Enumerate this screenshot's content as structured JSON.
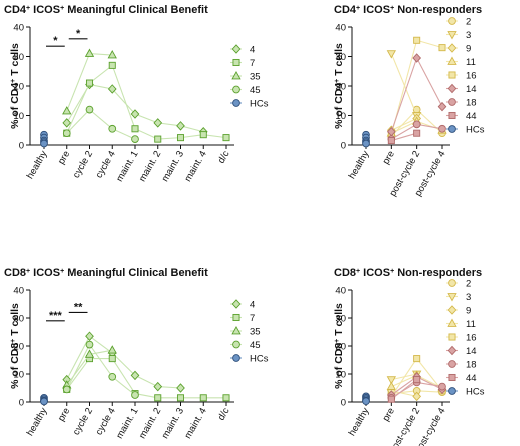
{
  "chart_data": [
    {
      "id": "p1",
      "type": "line",
      "title_parts": [
        "CD4",
        "+",
        " ICOS",
        "+",
        " Meaningful Clinical Benefit"
      ],
      "ylabel_parts": [
        "% of CD4",
        "+",
        " T cells"
      ],
      "ylim": [
        0,
        40
      ],
      "yticks": [
        0,
        10,
        20,
        30,
        40
      ],
      "categories": [
        "healthy",
        "pre",
        "cycle 2",
        "cycle 4",
        "maint. 1",
        "maint. 2",
        "maint. 3",
        "maint. 4",
        "d/c"
      ],
      "legend_position": "right",
      "series": [
        {
          "name": "4",
          "marker": "diamond",
          "color": "#5aa02c",
          "fill": "#c8e4b0",
          "x": [
            1,
            2,
            3,
            4,
            5,
            6,
            7
          ],
          "y": [
            7.5,
            20.5,
            19,
            10.5,
            7.5,
            6.5,
            4.5
          ]
        },
        {
          "name": "7",
          "marker": "square",
          "color": "#5aa02c",
          "fill": "#c8e4b0",
          "x": [
            1,
            2,
            3,
            4,
            5,
            6,
            7,
            8
          ],
          "y": [
            4,
            21,
            27,
            5.5,
            2,
            2.5,
            3.5,
            2.5
          ]
        },
        {
          "name": "35",
          "marker": "triangle",
          "color": "#5aa02c",
          "fill": "#c8e4b0",
          "x": [
            1,
            2,
            3
          ],
          "y": [
            11.5,
            31,
            30.5
          ]
        },
        {
          "name": "45",
          "marker": "circle",
          "color": "#5aa02c",
          "fill": "#c8e4b0",
          "x": [
            1,
            2,
            3,
            4
          ],
          "y": [
            4,
            12,
            5.5,
            2
          ]
        },
        {
          "name": "HCs",
          "marker": "circle",
          "color": "#2e4f7a",
          "fill": "#6b93c4",
          "x": [
            0,
            0,
            0,
            0,
            0
          ],
          "y": [
            3.5,
            2.5,
            1.5,
            1,
            0.5
          ]
        }
      ],
      "significance": [
        {
          "x1": 0,
          "x2": 1,
          "y": 33.5,
          "label": "*"
        },
        {
          "x1": 1,
          "x2": 2,
          "y": 36,
          "label": "*"
        }
      ]
    },
    {
      "id": "p2",
      "type": "line",
      "title_parts": [
        "CD4",
        "+",
        " ICOS",
        "+",
        " Non-responders"
      ],
      "ylabel_parts": [
        "% of CD4",
        "+",
        " T cells"
      ],
      "ylim": [
        0,
        40
      ],
      "yticks": [
        0,
        10,
        20,
        30,
        40
      ],
      "categories": [
        "healthy",
        "pre",
        "post-cycle 2",
        "post-cycle 4"
      ],
      "legend_position": "right",
      "series": [
        {
          "name": "2",
          "marker": "circle",
          "color": "#d4b84a",
          "fill": "#f2e6a8",
          "x": [
            1,
            2,
            3
          ],
          "y": [
            3,
            12,
            4
          ]
        },
        {
          "name": "3",
          "marker": "triangle-down",
          "color": "#d4b84a",
          "fill": "#f2e6a8",
          "x": [
            1,
            2
          ],
          "y": [
            31,
            10
          ]
        },
        {
          "name": "9",
          "marker": "diamond",
          "color": "#d4b84a",
          "fill": "#f2e6a8",
          "x": [
            1,
            2
          ],
          "y": [
            5,
            9
          ]
        },
        {
          "name": "11",
          "marker": "triangle",
          "color": "#d4b84a",
          "fill": "#f2e6a8",
          "x": [
            1,
            2,
            3
          ],
          "y": [
            4,
            8,
            5
          ]
        },
        {
          "name": "16",
          "marker": "square",
          "color": "#d4b84a",
          "fill": "#f2e6a8",
          "x": [
            1,
            2,
            3
          ],
          "y": [
            3.5,
            35.5,
            33
          ]
        },
        {
          "name": "14",
          "marker": "diamond",
          "color": "#b06a6a",
          "fill": "#d9a3a3",
          "x": [
            1,
            2,
            3
          ],
          "y": [
            4.5,
            29.5,
            13
          ]
        },
        {
          "name": "18",
          "marker": "circle",
          "color": "#b06a6a",
          "fill": "#d9a3a3",
          "x": [
            1,
            2,
            3
          ],
          "y": [
            2,
            7,
            5.5
          ]
        },
        {
          "name": "44",
          "marker": "square",
          "color": "#b06a6a",
          "fill": "#d9a3a3",
          "x": [
            1,
            2
          ],
          "y": [
            1.5,
            4
          ]
        },
        {
          "name": "HCs",
          "marker": "circle",
          "color": "#2e4f7a",
          "fill": "#6b93c4",
          "x": [
            0,
            0,
            0,
            0,
            0
          ],
          "y": [
            3.5,
            2.5,
            1.5,
            1,
            0.5
          ]
        }
      ],
      "significance": []
    },
    {
      "id": "p3",
      "type": "line",
      "title_parts": [
        "CD8",
        "+",
        " ICOS",
        "+",
        " Meaningful Clinical Benefit"
      ],
      "ylabel_parts": [
        "% of CD8",
        "+",
        " T cells"
      ],
      "ylim": [
        0,
        40
      ],
      "yticks": [
        0,
        10,
        20,
        30,
        40
      ],
      "categories": [
        "healthy",
        "pre",
        "cycle 2",
        "cycle 4",
        "maint. 1",
        "maint. 2",
        "maint. 3",
        "maint. 4",
        "d/c"
      ],
      "legend_position": "right",
      "series": [
        {
          "name": "4",
          "marker": "diamond",
          "color": "#5aa02c",
          "fill": "#c8e4b0",
          "x": [
            1,
            2,
            3,
            4,
            5,
            6
          ],
          "y": [
            8,
            23.5,
            17.5,
            9.5,
            5.5,
            5
          ]
        },
        {
          "name": "7",
          "marker": "square",
          "color": "#5aa02c",
          "fill": "#c8e4b0",
          "x": [
            1,
            2,
            3,
            4,
            5,
            6,
            7,
            8
          ],
          "y": [
            4.5,
            15.5,
            15.5,
            3,
            1.5,
            1.5,
            1.5,
            1.5
          ]
        },
        {
          "name": "35",
          "marker": "triangle",
          "color": "#5aa02c",
          "fill": "#c8e4b0",
          "x": [
            1,
            2,
            3
          ],
          "y": [
            6,
            17,
            18.5
          ]
        },
        {
          "name": "45",
          "marker": "circle",
          "color": "#5aa02c",
          "fill": "#c8e4b0",
          "x": [
            1,
            2,
            3,
            4
          ],
          "y": [
            4.5,
            20.5,
            9,
            2.5
          ]
        },
        {
          "name": "HCs",
          "marker": "circle",
          "color": "#2e4f7a",
          "fill": "#6b93c4",
          "x": [
            0,
            0,
            0,
            0,
            0
          ],
          "y": [
            1.5,
            1,
            0.5,
            0.3,
            0.2
          ]
        }
      ],
      "significance": [
        {
          "x1": 0,
          "x2": 1,
          "y": 29,
          "label": "***"
        },
        {
          "x1": 1,
          "x2": 2,
          "y": 32,
          "label": "**"
        }
      ]
    },
    {
      "id": "p4",
      "type": "line",
      "title_parts": [
        "CD8",
        "+",
        " ICOS",
        "+",
        " Non-responders"
      ],
      "ylabel_parts": [
        "% of CD8",
        "+",
        " T cells"
      ],
      "ylim": [
        0,
        40
      ],
      "yticks": [
        0,
        10,
        20,
        30,
        40
      ],
      "categories": [
        "healthy",
        "pre",
        "post-cycle 2",
        "post-cycle 4"
      ],
      "legend_position": "right",
      "series": [
        {
          "name": "2",
          "marker": "circle",
          "color": "#d4b84a",
          "fill": "#f2e6a8",
          "x": [
            1,
            2,
            3
          ],
          "y": [
            3,
            4,
            3.5
          ]
        },
        {
          "name": "3",
          "marker": "triangle-down",
          "color": "#d4b84a",
          "fill": "#f2e6a8",
          "x": [
            1,
            2
          ],
          "y": [
            8,
            10
          ]
        },
        {
          "name": "9",
          "marker": "diamond",
          "color": "#d4b84a",
          "fill": "#f2e6a8",
          "x": [
            1,
            2
          ],
          "y": [
            4,
            2
          ]
        },
        {
          "name": "11",
          "marker": "triangle",
          "color": "#d4b84a",
          "fill": "#f2e6a8",
          "x": [
            1,
            2,
            3
          ],
          "y": [
            5.5,
            9.5,
            5
          ]
        },
        {
          "name": "16",
          "marker": "square",
          "color": "#d4b84a",
          "fill": "#f2e6a8",
          "x": [
            1,
            2,
            3
          ],
          "y": [
            2,
            15.5,
            4
          ]
        },
        {
          "name": "14",
          "marker": "diamond",
          "color": "#b06a6a",
          "fill": "#d9a3a3",
          "x": [
            1,
            2,
            3
          ],
          "y": [
            2.5,
            9,
            4.5
          ]
        },
        {
          "name": "18",
          "marker": "circle",
          "color": "#b06a6a",
          "fill": "#d9a3a3",
          "x": [
            1,
            2,
            3
          ],
          "y": [
            1.5,
            7,
            5.5
          ]
        },
        {
          "name": "44",
          "marker": "square",
          "color": "#b06a6a",
          "fill": "#d9a3a3",
          "x": [
            1,
            2
          ],
          "y": [
            1,
            8
          ]
        },
        {
          "name": "HCs",
          "marker": "circle",
          "color": "#2e4f7a",
          "fill": "#6b93c4",
          "x": [
            0,
            0,
            0,
            0,
            0
          ],
          "y": [
            2,
            1.5,
            1,
            0.5,
            0.3
          ]
        }
      ],
      "significance": []
    }
  ]
}
